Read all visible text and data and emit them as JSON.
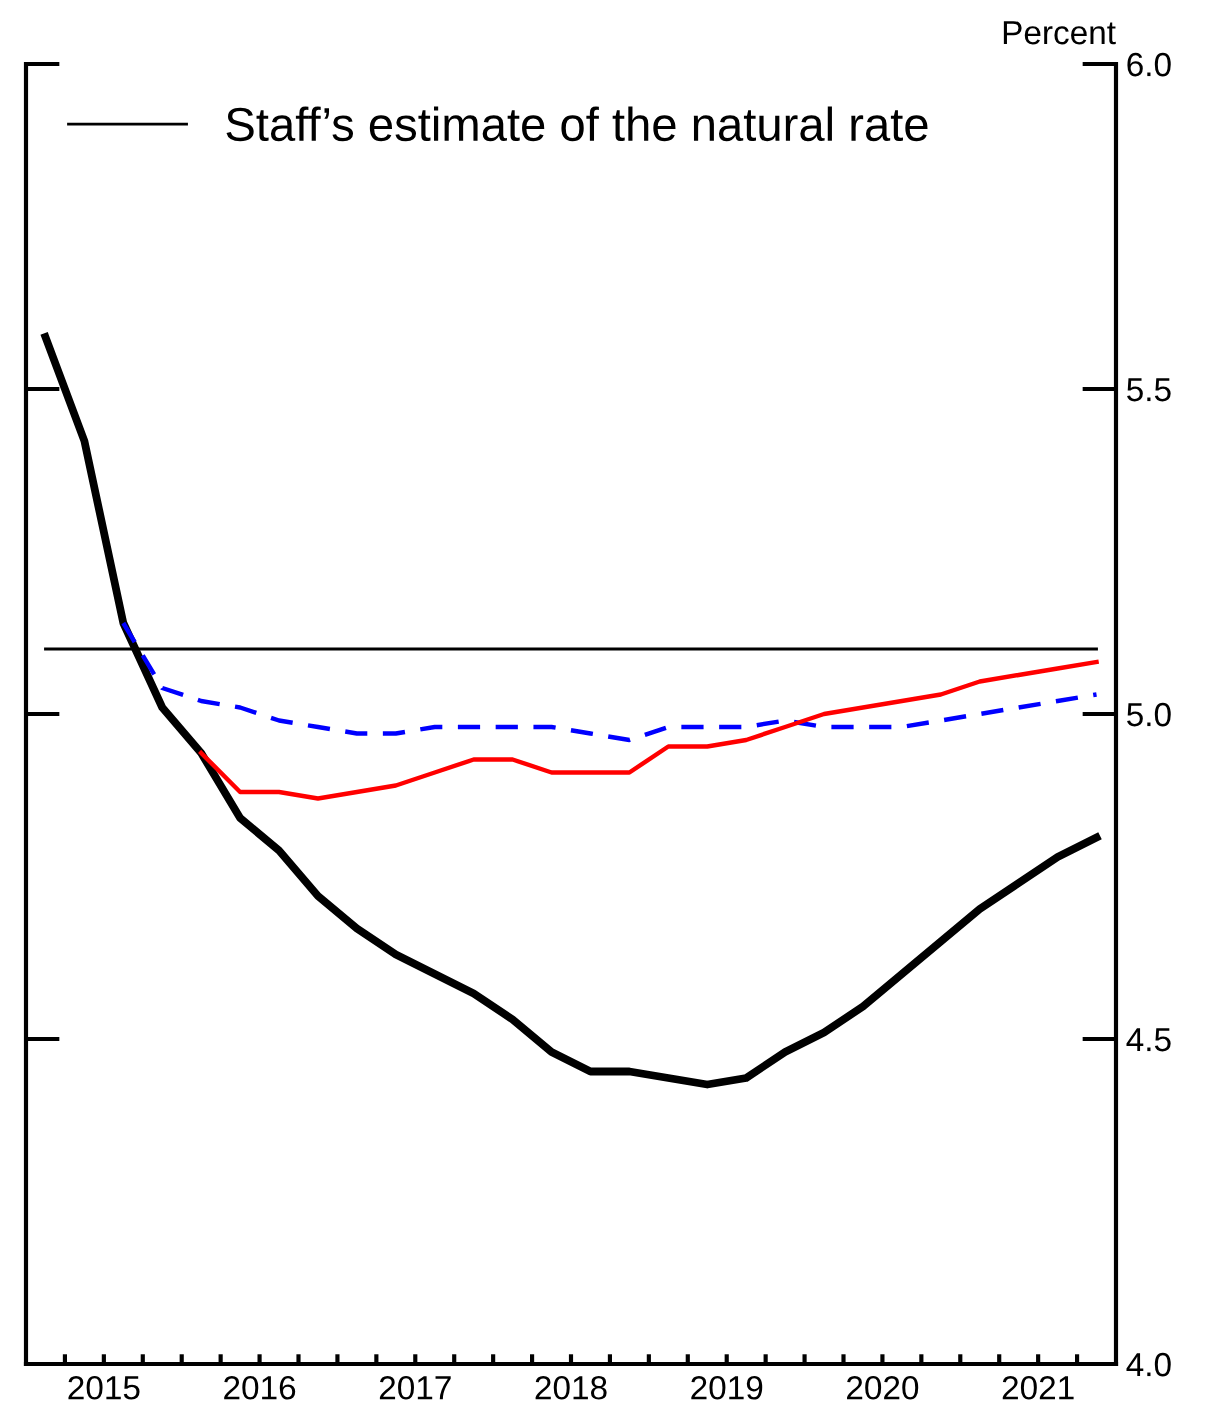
{
  "chart_data": {
    "type": "line",
    "ylabel": "Percent",
    "legend": "top left",
    "grid": false,
    "marker": "none",
    "xlim": [
      2015,
      2022
    ],
    "ylim": [
      4.0,
      6.0
    ],
    "xticks": [
      {
        "value": 2015.25,
        "label": null
      },
      {
        "value": 2015.5,
        "label": "2015"
      },
      {
        "value": 2015.75,
        "label": null
      },
      {
        "value": 2016,
        "label": null
      },
      {
        "value": 2016.25,
        "label": null
      },
      {
        "value": 2016.5,
        "label": "2016"
      },
      {
        "value": 2016.75,
        "label": null
      },
      {
        "value": 2017,
        "label": null
      },
      {
        "value": 2017.25,
        "label": null
      },
      {
        "value": 2017.5,
        "label": "2017"
      },
      {
        "value": 2017.75,
        "label": null
      },
      {
        "value": 2018,
        "label": null
      },
      {
        "value": 2018.25,
        "label": null
      },
      {
        "value": 2018.5,
        "label": "2018"
      },
      {
        "value": 2018.75,
        "label": null
      },
      {
        "value": 2019,
        "label": null
      },
      {
        "value": 2019.25,
        "label": null
      },
      {
        "value": 2019.5,
        "label": "2019"
      },
      {
        "value": 2019.75,
        "label": null
      },
      {
        "value": 2020,
        "label": null
      },
      {
        "value": 2020.25,
        "label": null
      },
      {
        "value": 2020.5,
        "label": "2020"
      },
      {
        "value": 2020.75,
        "label": null
      },
      {
        "value": 2021,
        "label": null
      },
      {
        "value": 2021.25,
        "label": null
      },
      {
        "value": 2021.5,
        "label": "2021"
      },
      {
        "value": 2021.75,
        "label": null
      }
    ],
    "yticks": [
      {
        "value": 4.0,
        "label": "4.0"
      },
      {
        "value": 4.5,
        "label": "4.5"
      },
      {
        "value": 5.0,
        "label": "5.0"
      },
      {
        "value": 5.5,
        "label": "5.5"
      },
      {
        "value": 6.0,
        "label": "6.0"
      }
    ],
    "series": [
      {
        "name": "Staff’s estimate of the natural rate",
        "color": "#000000",
        "line_style": "solid",
        "x": [
          2015.125,
          2021.875
        ],
        "values": [
          5.1,
          5.1
        ]
      },
      {
        "color": "#0000ff",
        "line_style": "dashed",
        "x": [
          2015.625,
          2015.875,
          2016.125,
          2016.375,
          2016.625,
          2016.875,
          2017.125,
          2017.375,
          2017.625,
          2017.875,
          2018.125,
          2018.375,
          2018.625,
          2018.875,
          2019.125,
          2019.375,
          2019.625,
          2019.875,
          2020.125,
          2020.375,
          2020.625,
          2020.875,
          2021.125,
          2021.375,
          2021.625,
          2021.875
        ],
        "values": [
          5.14,
          5.04,
          5.02,
          5.01,
          4.99,
          4.98,
          4.97,
          4.97,
          4.98,
          4.98,
          4.98,
          4.98,
          4.97,
          4.96,
          4.98,
          4.98,
          4.98,
          4.99,
          4.98,
          4.98,
          4.98,
          4.99,
          5.0,
          5.01,
          5.02,
          5.03
        ]
      },
      {
        "color": "#ff0000",
        "line_style": "solid",
        "x": [
          2016.125,
          2016.375,
          2016.625,
          2016.875,
          2017.125,
          2017.375,
          2017.625,
          2017.875,
          2018.125,
          2018.375,
          2018.625,
          2018.875,
          2019.125,
          2019.375,
          2019.625,
          2019.875,
          2020.125,
          2020.375,
          2020.625,
          2020.875,
          2021.125,
          2021.375,
          2021.625,
          2021.875
        ],
        "values": [
          4.94,
          4.88,
          4.88,
          4.87,
          4.88,
          4.89,
          4.91,
          4.93,
          4.93,
          4.91,
          4.91,
          4.91,
          4.95,
          4.95,
          4.96,
          4.98,
          5.0,
          5.01,
          5.02,
          5.03,
          5.05,
          5.06,
          5.07,
          5.08
        ]
      },
      {
        "color": "#000000",
        "line_style": "solid",
        "x": [
          2015.125,
          2015.375,
          2015.625,
          2015.875,
          2016.125,
          2016.375,
          2016.625,
          2016.875,
          2017.125,
          2017.375,
          2017.625,
          2017.875,
          2018.125,
          2018.375,
          2018.625,
          2018.875,
          2019.125,
          2019.375,
          2019.625,
          2019.875,
          2020.125,
          2020.375,
          2020.625,
          2020.875,
          2021.125,
          2021.375,
          2021.625,
          2021.875
        ],
        "values": [
          5.58,
          5.42,
          5.14,
          5.01,
          4.94,
          4.84,
          4.79,
          4.72,
          4.67,
          4.63,
          4.6,
          4.57,
          4.53,
          4.48,
          4.45,
          4.45,
          4.44,
          4.43,
          4.44,
          4.48,
          4.51,
          4.55,
          4.6,
          4.65,
          4.7,
          4.74,
          4.78,
          4.81
        ]
      }
    ]
  }
}
